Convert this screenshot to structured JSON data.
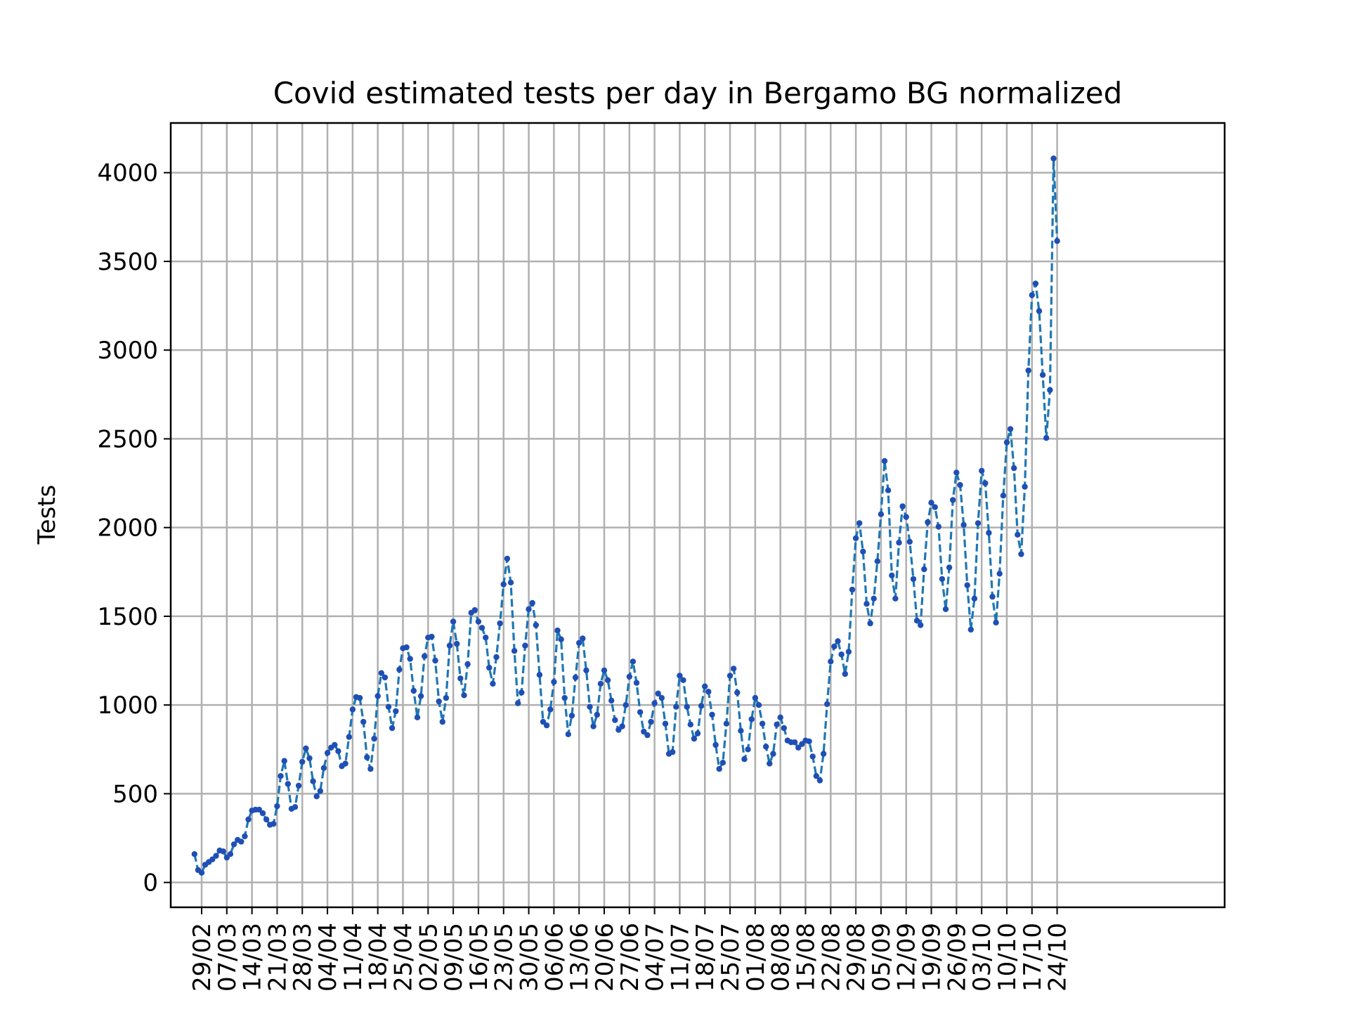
{
  "chart_data": {
    "type": "line",
    "title": "Covid estimated tests per day in Bergamo BG normalized",
    "xlabel": "",
    "ylabel": "Tests",
    "x_start": "2020-02-27",
    "ylim": [
      -140,
      4280
    ],
    "yticks": [
      0,
      500,
      1000,
      1500,
      2000,
      2500,
      3000,
      3500,
      4000
    ],
    "xticks": [
      "29/02",
      "07/03",
      "14/03",
      "21/03",
      "28/03",
      "04/04",
      "11/04",
      "18/04",
      "25/04",
      "02/05",
      "09/05",
      "16/05",
      "23/05",
      "30/05",
      "06/06",
      "13/06",
      "20/06",
      "27/06",
      "04/07",
      "11/07",
      "18/07",
      "25/07",
      "01/08",
      "08/08",
      "15/08",
      "22/08",
      "29/08",
      "05/09",
      "12/09",
      "19/09",
      "26/09",
      "03/10",
      "10/10",
      "17/10",
      "24/10"
    ],
    "grid": true,
    "line_color": "#1f77b4",
    "marker_color": "#1f4fb4",
    "series": [
      {
        "name": "",
        "values": [
          160,
          70,
          55,
          100,
          115,
          130,
          150,
          180,
          175,
          140,
          160,
          215,
          240,
          230,
          260,
          355,
          405,
          410,
          410,
          390,
          355,
          325,
          330,
          430,
          600,
          685,
          555,
          415,
          425,
          545,
          680,
          755,
          700,
          570,
          485,
          515,
          645,
          730,
          760,
          775,
          740,
          655,
          670,
          820,
          975,
          1045,
          1040,
          905,
          705,
          640,
          810,
          1050,
          1180,
          1155,
          990,
          870,
          965,
          1200,
          1320,
          1325,
          1260,
          1080,
          930,
          1050,
          1275,
          1380,
          1385,
          1250,
          1020,
          905,
          1040,
          1335,
          1470,
          1345,
          1150,
          1055,
          1230,
          1520,
          1535,
          1470,
          1435,
          1380,
          1210,
          1120,
          1270,
          1460,
          1680,
          1825,
          1690,
          1305,
          1010,
          1070,
          1335,
          1540,
          1575,
          1450,
          1170,
          905,
          885,
          975,
          1130,
          1420,
          1370,
          1040,
          835,
          940,
          1155,
          1350,
          1375,
          1195,
          990,
          880,
          945,
          1120,
          1195,
          1140,
          1025,
          915,
          860,
          880,
          1000,
          1160,
          1245,
          1125,
          960,
          850,
          830,
          905,
          1010,
          1065,
          1040,
          895,
          725,
          735,
          990,
          1165,
          1140,
          990,
          890,
          810,
          840,
          995,
          1105,
          1075,
          945,
          775,
          640,
          675,
          895,
          1165,
          1205,
          1070,
          855,
          695,
          750,
          920,
          1040,
          1000,
          895,
          765,
          670,
          725,
          890,
          930,
          870,
          800,
          790,
          790,
          760,
          780,
          800,
          795,
          710,
          600,
          575,
          725,
          1005,
          1245,
          1330,
          1360,
          1285,
          1175,
          1300,
          1650,
          1940,
          2025,
          1865,
          1570,
          1460,
          1600,
          1810,
          2075,
          2375,
          2210,
          1730,
          1600,
          1915,
          2120,
          2060,
          1920,
          1710,
          1475,
          1450,
          1765,
          2030,
          2140,
          2115,
          2005,
          1710,
          1540,
          1775,
          2155,
          2310,
          2240,
          2015,
          1675,
          1425,
          1600,
          2025,
          2320,
          2250,
          1970,
          1610,
          1465,
          1740,
          2180,
          2480,
          2555,
          2335,
          1960,
          1850,
          2230,
          2885,
          3310,
          3375,
          3220,
          2860,
          2505,
          2775,
          4080,
          3615
        ]
      }
    ]
  }
}
